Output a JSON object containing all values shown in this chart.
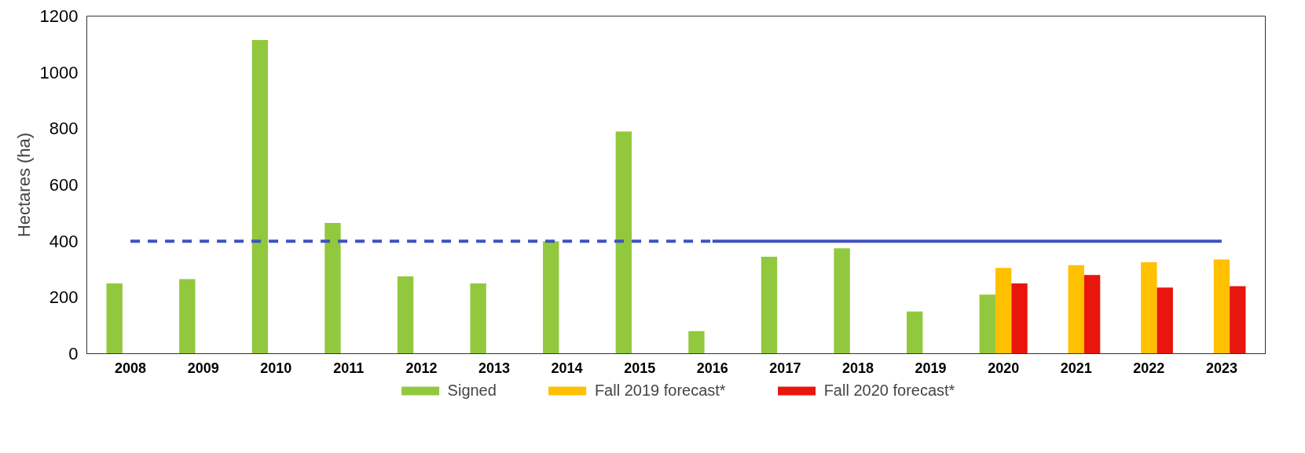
{
  "chart_data": {
    "type": "bar",
    "ylabel": "Hectares (ha)",
    "categories": [
      "2008",
      "2009",
      "2010",
      "2011",
      "2012",
      "2013",
      "2014",
      "2015",
      "2016",
      "2017",
      "2018",
      "2019",
      "2020",
      "2021",
      "2022",
      "2023"
    ],
    "series": [
      {
        "name": "Signed",
        "color": "#92c83e",
        "values": [
          250,
          265,
          1115,
          465,
          275,
          250,
          400,
          790,
          80,
          345,
          375,
          150,
          210,
          null,
          null,
          null
        ]
      },
      {
        "name": "Fall 2019 forecast*",
        "color": "#ffc000",
        "values": [
          null,
          null,
          null,
          null,
          null,
          null,
          null,
          null,
          null,
          null,
          null,
          null,
          305,
          315,
          325,
          335
        ]
      },
      {
        "name": "Fall 2020 forecast*",
        "color": "#e8160c",
        "values": [
          null,
          null,
          null,
          null,
          null,
          null,
          null,
          null,
          null,
          null,
          null,
          null,
          250,
          280,
          235,
          240
        ]
      },
      {
        "type": "line",
        "color": "#3f51c0",
        "line_style": "dashed",
        "values": [
          400,
          400,
          400,
          400,
          400,
          400,
          400,
          400,
          400,
          null,
          null,
          null,
          null,
          null,
          null,
          null
        ]
      },
      {
        "type": "line",
        "color": "#3f51c0",
        "line_style": "solid",
        "values": [
          null,
          null,
          null,
          null,
          null,
          null,
          null,
          null,
          400,
          400,
          400,
          400,
          400,
          400,
          400,
          400
        ]
      }
    ],
    "ylim": [
      0,
      1200
    ],
    "yticks": [
      0,
      200,
      400,
      600,
      800,
      1000,
      1200
    ],
    "grid": false,
    "legend": "bottom"
  }
}
